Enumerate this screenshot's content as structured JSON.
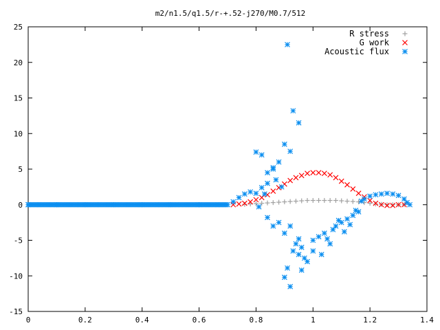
{
  "chart_data": {
    "type": "scatter",
    "title": "m2/n1.5/q1.5/r-+.52-j270/M0.7/512",
    "xlabel": "",
    "ylabel": "",
    "xlim": [
      0,
      1.4
    ],
    "ylim": [
      -15,
      25
    ],
    "x_ticks": [
      0,
      0.2,
      0.4,
      0.6,
      0.8,
      1,
      1.2,
      1.4
    ],
    "y_ticks": [
      -15,
      -10,
      -5,
      0,
      5,
      10,
      15,
      20,
      25
    ],
    "legend_position": "top-right",
    "grid": false,
    "series": [
      {
        "name": "R stress",
        "marker": "plus",
        "color": "#a0a0a0",
        "points": [
          [
            0.76,
            0.05
          ],
          [
            0.78,
            0.1
          ],
          [
            0.8,
            0.15
          ],
          [
            0.82,
            0.2
          ],
          [
            0.84,
            0.25
          ],
          [
            0.86,
            0.3
          ],
          [
            0.88,
            0.35
          ],
          [
            0.9,
            0.4
          ],
          [
            0.92,
            0.45
          ],
          [
            0.94,
            0.5
          ],
          [
            0.96,
            0.55
          ],
          [
            0.98,
            0.6
          ],
          [
            1.0,
            0.6
          ],
          [
            1.02,
            0.6
          ],
          [
            1.04,
            0.6
          ],
          [
            1.06,
            0.6
          ],
          [
            1.08,
            0.6
          ],
          [
            1.1,
            0.55
          ],
          [
            1.12,
            0.5
          ],
          [
            1.14,
            0.45
          ],
          [
            1.16,
            0.4
          ],
          [
            1.18,
            0.3
          ],
          [
            1.2,
            0.2
          ],
          [
            1.22,
            0.1
          ],
          [
            1.24,
            0.05
          ],
          [
            1.26,
            0.0
          ],
          [
            1.28,
            0.0
          ],
          [
            1.3,
            0.0
          ],
          [
            1.32,
            0.0
          ]
        ]
      },
      {
        "name": "G work",
        "marker": "cross",
        "color": "#ff0000",
        "points": [
          [
            0.72,
            0.0
          ],
          [
            0.74,
            0.1
          ],
          [
            0.76,
            0.2
          ],
          [
            0.78,
            0.4
          ],
          [
            0.8,
            0.7
          ],
          [
            0.82,
            1.0
          ],
          [
            0.84,
            1.4
          ],
          [
            0.86,
            1.9
          ],
          [
            0.88,
            2.4
          ],
          [
            0.9,
            2.9
          ],
          [
            0.92,
            3.4
          ],
          [
            0.94,
            3.8
          ],
          [
            0.96,
            4.1
          ],
          [
            0.98,
            4.4
          ],
          [
            1.0,
            4.5
          ],
          [
            1.02,
            4.5
          ],
          [
            1.04,
            4.4
          ],
          [
            1.06,
            4.2
          ],
          [
            1.08,
            3.8
          ],
          [
            1.1,
            3.3
          ],
          [
            1.12,
            2.8
          ],
          [
            1.14,
            2.2
          ],
          [
            1.16,
            1.6
          ],
          [
            1.18,
            1.1
          ],
          [
            1.2,
            0.6
          ],
          [
            1.22,
            0.2
          ],
          [
            1.24,
            0.0
          ],
          [
            1.26,
            -0.1
          ],
          [
            1.28,
            -0.1
          ],
          [
            1.3,
            0.0
          ],
          [
            1.32,
            0.0
          ]
        ]
      },
      {
        "name": "Acoustic flux",
        "marker": "star",
        "color": "#0a8ef0",
        "points": [
          [
            0.0,
            0.0
          ],
          [
            0.1,
            0.0
          ],
          [
            0.2,
            0.0
          ],
          [
            0.3,
            0.0
          ],
          [
            0.4,
            0.0
          ],
          [
            0.5,
            0.0
          ],
          [
            0.6,
            0.0
          ],
          [
            0.7,
            0.0
          ],
          [
            0.72,
            0.4
          ],
          [
            0.74,
            1.0
          ],
          [
            0.76,
            1.5
          ],
          [
            0.78,
            1.8
          ],
          [
            0.8,
            1.6
          ],
          [
            0.82,
            2.4
          ],
          [
            0.84,
            4.5
          ],
          [
            0.86,
            5.2
          ],
          [
            0.88,
            6.0
          ],
          [
            0.9,
            8.5
          ],
          [
            0.92,
            7.5
          ],
          [
            0.93,
            13.2
          ],
          [
            0.95,
            11.5
          ],
          [
            0.91,
            22.5
          ],
          [
            0.8,
            7.4
          ],
          [
            0.82,
            7.0
          ],
          [
            0.86,
            5.0
          ],
          [
            0.87,
            3.5
          ],
          [
            0.89,
            2.5
          ],
          [
            0.84,
            3.0
          ],
          [
            0.83,
            1.5
          ],
          [
            0.81,
            -0.3
          ],
          [
            0.84,
            -1.8
          ],
          [
            0.86,
            -3.0
          ],
          [
            0.88,
            -2.5
          ],
          [
            0.9,
            -4.0
          ],
          [
            0.92,
            -3.0
          ],
          [
            0.93,
            -6.5
          ],
          [
            0.94,
            -5.5
          ],
          [
            0.95,
            -4.8
          ],
          [
            0.96,
            -6.0
          ],
          [
            0.97,
            -7.5
          ],
          [
            0.98,
            -8.0
          ],
          [
            1.0,
            -5.0
          ],
          [
            1.02,
            -4.5
          ],
          [
            1.04,
            -4.0
          ],
          [
            1.06,
            -5.5
          ],
          [
            1.08,
            -3.0
          ],
          [
            1.1,
            -2.5
          ],
          [
            1.12,
            -2.0
          ],
          [
            1.14,
            -1.5
          ],
          [
            1.16,
            -1.0
          ],
          [
            0.91,
            -8.9
          ],
          [
            0.9,
            -10.2
          ],
          [
            0.92,
            -11.5
          ],
          [
            0.96,
            -9.2
          ],
          [
            0.95,
            -7.0
          ],
          [
            1.0,
            -6.5
          ],
          [
            1.03,
            -7.0
          ],
          [
            1.05,
            -4.8
          ],
          [
            1.07,
            -3.5
          ],
          [
            1.09,
            -2.2
          ],
          [
            1.11,
            -3.8
          ],
          [
            1.13,
            -2.8
          ],
          [
            1.15,
            -0.8
          ],
          [
            1.17,
            0.5
          ],
          [
            1.18,
            0.8
          ],
          [
            1.2,
            1.2
          ],
          [
            1.22,
            1.4
          ],
          [
            1.24,
            1.5
          ],
          [
            1.26,
            1.6
          ],
          [
            1.28,
            1.5
          ],
          [
            1.3,
            1.3
          ],
          [
            1.32,
            0.8
          ],
          [
            1.33,
            0.3
          ],
          [
            1.34,
            0.0
          ]
        ]
      }
    ]
  }
}
